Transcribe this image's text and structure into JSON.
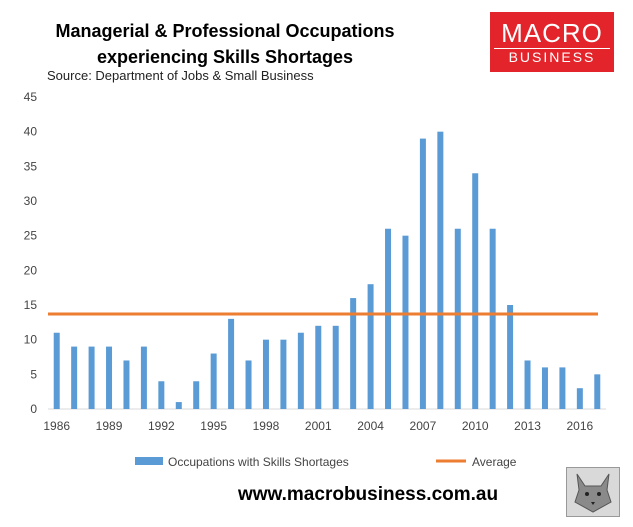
{
  "header": {
    "title_line1": "Managerial & Professional Occupations",
    "title_line2": "experiencing Skills Shortages",
    "source": "Source: Department of Jobs & Small Business"
  },
  "logo": {
    "line1": "MACRO",
    "line2": "BUSINESS"
  },
  "footer": {
    "url": "www.macrobusiness.com.au"
  },
  "colors": {
    "bars": "#5b9bd5",
    "average": "#ed7d31",
    "brand": "#e3242b",
    "grid": "#d9d9d9"
  },
  "chart_data": {
    "type": "bar",
    "x": [
      1986,
      1987,
      1988,
      1989,
      1990,
      1991,
      1992,
      1993,
      1994,
      1995,
      1996,
      1997,
      1998,
      1999,
      2000,
      2001,
      2002,
      2003,
      2004,
      2005,
      2006,
      2007,
      2008,
      2009,
      2010,
      2011,
      2012,
      2013,
      2014,
      2015,
      2016,
      2017
    ],
    "x_tick_labels": [
      "1986",
      "1989",
      "1992",
      "1995",
      "1998",
      "2001",
      "2004",
      "2007",
      "2010",
      "2013",
      "2016"
    ],
    "series": [
      {
        "name": "Occupations with Skills Shortages",
        "type": "bar",
        "values": [
          11,
          9,
          9,
          9,
          7,
          9,
          4,
          1,
          4,
          8,
          13,
          7,
          10,
          10,
          11,
          12,
          12,
          16,
          18,
          26,
          25,
          39,
          40,
          26,
          34,
          26,
          15,
          7,
          6,
          6,
          3,
          5
        ]
      },
      {
        "name": "Average",
        "type": "line",
        "value": 13.7
      }
    ],
    "ylim": [
      0,
      45
    ],
    "y_ticks": [
      0,
      5,
      10,
      15,
      20,
      25,
      30,
      35,
      40,
      45
    ],
    "grid": false,
    "legend": "bottom",
    "xlabel": "",
    "ylabel": ""
  }
}
